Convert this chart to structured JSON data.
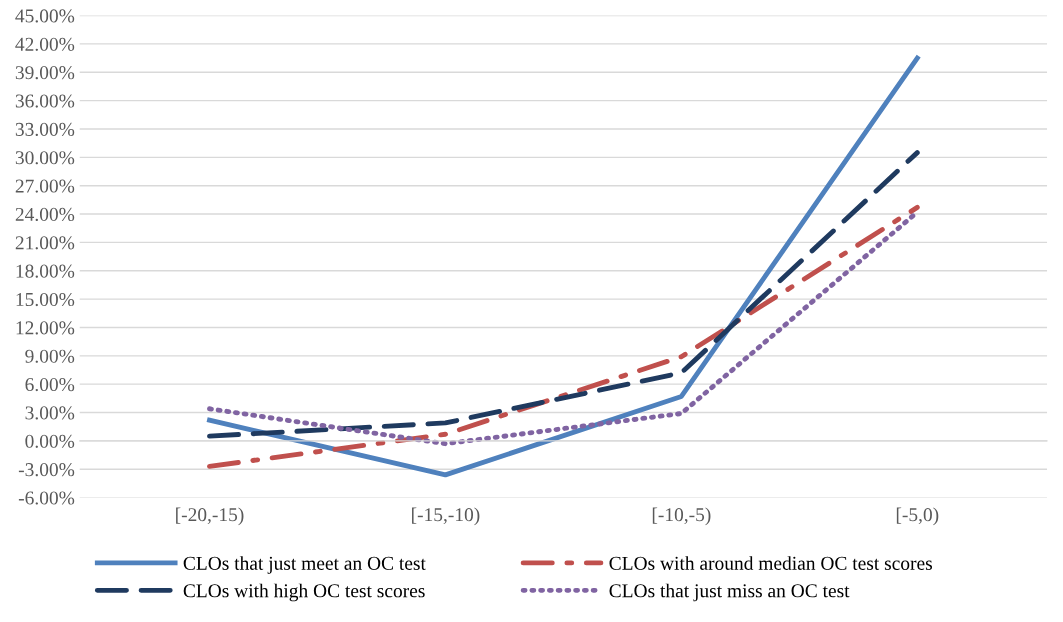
{
  "chart_data": {
    "type": "line",
    "categories": [
      "[-20,-15)",
      "[-15,-10)",
      "[-10,-5)",
      "[-5,0)"
    ],
    "series": [
      {
        "name": "CLOs that just meet an OC test",
        "color": "#4f81bd",
        "line_style": "solid",
        "values": [
          2.2,
          -3.6,
          4.7,
          40.5
        ]
      },
      {
        "name": "CLOs with around median OC test scores",
        "color": "#c0504d",
        "line_style": "dashdot",
        "values": [
          -2.7,
          0.7,
          8.9,
          24.7
        ]
      },
      {
        "name": "CLOs with high OC test scores",
        "color": "#1f3a5f",
        "line_style": "dashed",
        "values": [
          0.5,
          1.9,
          7.2,
          30.5
        ]
      },
      {
        "name": "CLOs that just miss an OC test",
        "color": "#8064a2",
        "line_style": "dotted",
        "values": [
          3.4,
          -0.3,
          2.9,
          24.2
        ]
      }
    ],
    "ylim": [
      -6,
      45
    ],
    "yticks": [
      {
        "value": -6,
        "label": "-6.00%"
      },
      {
        "value": -3,
        "label": "-3.00%"
      },
      {
        "value": 0,
        "label": "0.00%"
      },
      {
        "value": 3,
        "label": "3.00%"
      },
      {
        "value": 6,
        "label": "6.00%"
      },
      {
        "value": 9,
        "label": "9.00%"
      },
      {
        "value": 12,
        "label": "12.00%"
      },
      {
        "value": 15,
        "label": "15.00%"
      },
      {
        "value": 18,
        "label": "18.00%"
      },
      {
        "value": 21,
        "label": "21.00%"
      },
      {
        "value": 24,
        "label": "24.00%"
      },
      {
        "value": 27,
        "label": "27.00%"
      },
      {
        "value": 30,
        "label": "30.00%"
      },
      {
        "value": 33,
        "label": "33.00%"
      },
      {
        "value": 36,
        "label": "36.00%"
      },
      {
        "value": 39,
        "label": "39.00%"
      },
      {
        "value": 42,
        "label": "42.00%"
      },
      {
        "value": 45,
        "label": "45.00%"
      }
    ],
    "grid": "y",
    "legend": "bottom"
  }
}
